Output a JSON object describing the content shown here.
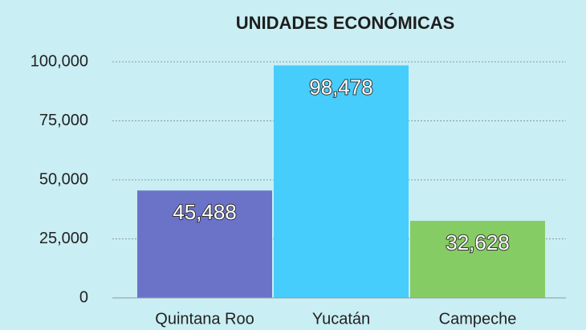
{
  "chart_data": {
    "type": "bar",
    "title": "UNIDADES ECONÓMICAS",
    "categories": [
      "Quintana Roo",
      "Yucatán",
      "Campeche"
    ],
    "values": [
      45488,
      98478,
      32628
    ],
    "value_labels": [
      "45,488",
      "98,478",
      "32,628"
    ],
    "colors": [
      "#6b73c9",
      "#46cdfb",
      "#86cc64"
    ],
    "ylim": [
      0,
      100000
    ],
    "yticks": [
      0,
      {
        "value": 25000,
        "label": "25,000"
      },
      {
        "value": 50000,
        "label": "50,000"
      },
      {
        "value": 75000,
        "label": "75,000"
      },
      {
        "value": 100000,
        "label": "100,000"
      }
    ],
    "grid": true
  }
}
